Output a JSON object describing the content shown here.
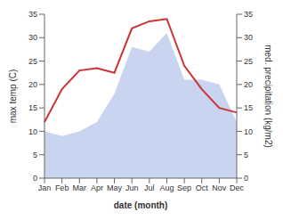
{
  "chart_data": {
    "type": "line",
    "xlabel": "date (month)",
    "ylabel": "max temp (C)",
    "y2label": "med. precipitation (kg/m2)",
    "categories": [
      "Jan",
      "Feb",
      "Mar",
      "Apr",
      "May",
      "Jun",
      "Jul",
      "Aug",
      "Sep",
      "Oct",
      "Nov",
      "Dec"
    ],
    "series": [
      {
        "type": "area",
        "axis": "y2",
        "color": "#c8d4f0",
        "values": [
          10,
          9,
          10,
          12,
          18,
          28,
          27,
          31,
          21,
          21,
          20,
          12
        ]
      },
      {
        "type": "line",
        "color": "#cc3333",
        "values": [
          12,
          19,
          23,
          23.5,
          22.5,
          32,
          33.5,
          34,
          24,
          19,
          15,
          14
        ]
      }
    ],
    "ylim": [
      0,
      35
    ],
    "yticks": [
      0,
      5,
      10,
      15,
      20,
      25,
      30,
      35
    ],
    "y2lim": [
      0,
      35
    ],
    "y2ticks": [
      0,
      5,
      10,
      15,
      20,
      25,
      30,
      35
    ],
    "grid": false
  }
}
